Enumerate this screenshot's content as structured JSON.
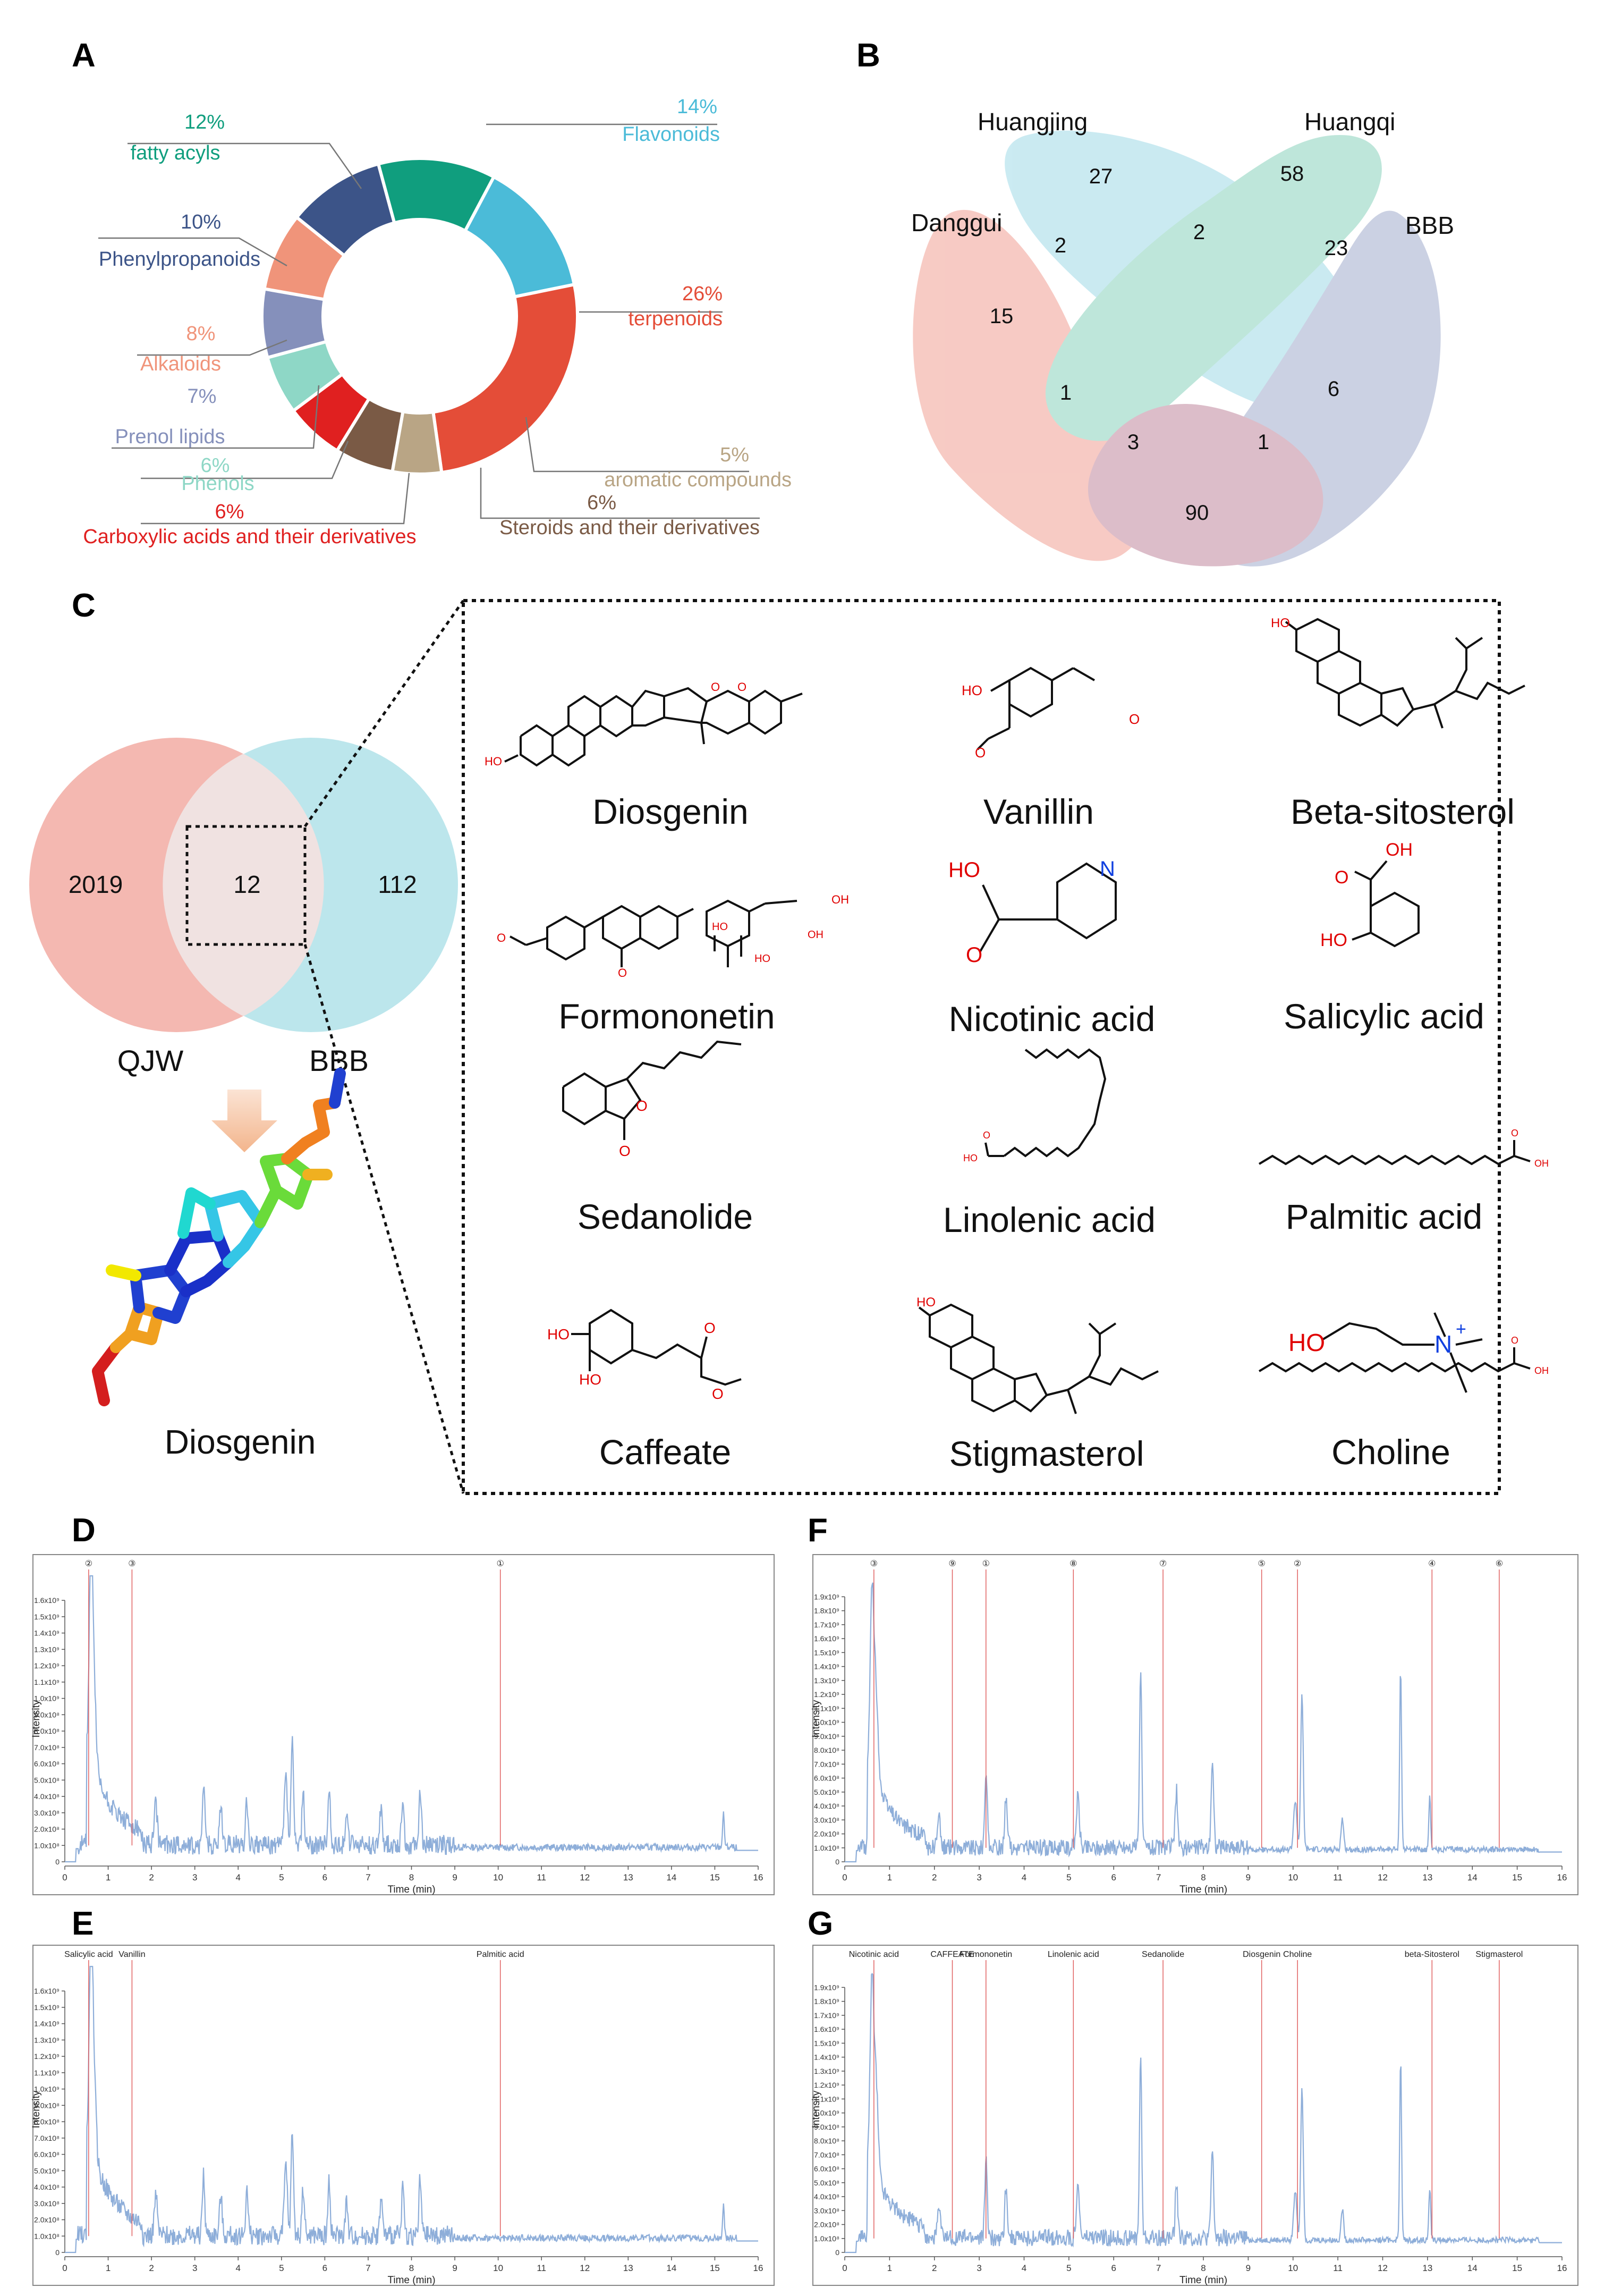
{
  "panels": {
    "A": "A",
    "B": "B",
    "C": "C",
    "D": "D",
    "E": "E",
    "F": "F",
    "G": "G"
  },
  "chart_data": {
    "type": "pie",
    "title": "",
    "categories": [
      "Flavonoids",
      "terpenoids",
      "aromatic compounds",
      "Steroids and their derivatives",
      "Carboxylic acids and their derivatives",
      "Phenols",
      "Prenol lipids",
      "Alkaloids",
      "Phenylpropanoids",
      "fatty acyls"
    ],
    "values": [
      14,
      26,
      5,
      6,
      6,
      6,
      7,
      8,
      10,
      12
    ],
    "percent_labels": [
      "14%",
      "26%",
      "5%",
      "6%",
      "6%",
      "6%",
      "7%",
      "8%",
      "10%",
      "12%"
    ],
    "colors": [
      "#4bbbd8",
      "#e44d38",
      "#b9a585",
      "#7a5a45",
      "#e02020",
      "#8ed7c6",
      "#8590bb",
      "#f0947a",
      "#3c5488",
      "#109e7e"
    ]
  },
  "venn4": {
    "sets": [
      {
        "name": "Huangjing",
        "color": "#a8dde9"
      },
      {
        "name": "Huangqi",
        "color": "#93d7c2"
      },
      {
        "name": "Danggui",
        "color": "#f2a89d"
      },
      {
        "name": "BBB",
        "color": "#a9b3d1"
      }
    ],
    "counts": {
      "huangjing_only": "27",
      "huangqi_only": "58",
      "danggui_only": "15",
      "bbb_only": "90",
      "danggui_huangjing": "2",
      "huangjing_huangqi": "2",
      "huangqi_bbb": "23",
      "danggui_huangqi": "1",
      "huangjing_bbb": "6",
      "danggui_huangjing_huangqi": "3",
      "huangjing_huangqi_bbb": "1"
    }
  },
  "venn2": {
    "left_label": "QJW",
    "right_label": "BBB",
    "left_only": "2019",
    "overlap": "12",
    "right_only": "112",
    "docked_label": "Diosgenin"
  },
  "molecules": [
    "Diosgenin",
    "Vanillin",
    "Beta-sitosterol",
    "Formononetin",
    "Nicotinic acid",
    "Salicylic acid",
    "Sedanolide",
    "Linolenic acid",
    "Palmitic acid",
    "Caffeate",
    "Stigmasterol",
    "Choline"
  ],
  "atoms": {
    "ho": "HO",
    "oh": "OH",
    "o": "O",
    "n": "N",
    "n_plus": "N",
    "plus": "+"
  },
  "chromatograms": {
    "ylabel": "Intensity",
    "xlabel": "Time (min)",
    "x_ticks": [
      "0",
      "1",
      "2",
      "3",
      "4",
      "5",
      "6",
      "7",
      "8",
      "9",
      "10",
      "11",
      "12",
      "13",
      "14",
      "15",
      "16"
    ],
    "D": {
      "y_ticks": [
        "0",
        "1.0x10⁸",
        "2.0x10⁸",
        "3.0x10⁸",
        "4.0x10⁸",
        "5.0x10⁸",
        "6.0x10⁸",
        "7.0x10⁸",
        "8.0x10⁸",
        "9.0x10⁸",
        "1.0x10⁹",
        "1.1x10⁹",
        "1.2x10⁹",
        "1.3x10⁹",
        "1.4x10⁹",
        "1.5x10⁹",
        "1.6x10⁹"
      ],
      "annotations": [
        {
          "text": "②",
          "t": 0.55
        },
        {
          "text": "③",
          "t": 1.55
        },
        {
          "text": "①",
          "t": 10.05
        }
      ]
    },
    "E": {
      "y_ticks": [
        "0",
        "1.0x10⁸",
        "2.0x10⁸",
        "3.0x10⁸",
        "4.0x10⁸",
        "5.0x10⁸",
        "6.0x10⁸",
        "7.0x10⁸",
        "8.0x10⁸",
        "9.0x10⁸",
        "1.0x10⁹",
        "1.1x10⁹",
        "1.2x10⁹",
        "1.3x10⁹",
        "1.4x10⁹",
        "1.5x10⁹",
        "1.6x10⁹"
      ],
      "annotations": [
        {
          "text": "Salicylic acid",
          "t": 0.55
        },
        {
          "text": "Vanillin",
          "t": 1.55
        },
        {
          "text": "Palmitic acid",
          "t": 10.05
        }
      ]
    },
    "F": {
      "y_ticks": [
        "0",
        "1.0x10⁸",
        "2.0x10⁸",
        "3.0x10⁸",
        "4.0x10⁸",
        "5.0x10⁸",
        "6.0x10⁸",
        "7.0x10⁸",
        "8.0x10⁸",
        "9.0x10⁸",
        "1.0x10⁹",
        "1.1x10⁹",
        "1.2x10⁹",
        "1.3x10⁹",
        "1.4x10⁹",
        "1.5x10⁹",
        "1.6x10⁹",
        "1.7x10⁹",
        "1.8x10⁹",
        "1.9x10⁹"
      ],
      "annotations": [
        {
          "text": "③",
          "t": 0.65
        },
        {
          "text": "⑨",
          "t": 2.4
        },
        {
          "text": "①",
          "t": 3.15
        },
        {
          "text": "⑧",
          "t": 5.1
        },
        {
          "text": "⑦",
          "t": 7.1
        },
        {
          "text": "⑤",
          "t": 9.3
        },
        {
          "text": "②",
          "t": 10.1
        },
        {
          "text": "④",
          "t": 13.1
        },
        {
          "text": "⑥",
          "t": 14.6
        }
      ]
    },
    "G": {
      "y_ticks": [
        "0",
        "1.0x10⁸",
        "2.0x10⁸",
        "3.0x10⁸",
        "4.0x10⁸",
        "5.0x10⁸",
        "6.0x10⁸",
        "7.0x10⁸",
        "8.0x10⁸",
        "9.0x10⁸",
        "1.0x10⁹",
        "1.1x10⁹",
        "1.2x10⁹",
        "1.3x10⁹",
        "1.4x10⁹",
        "1.5x10⁹",
        "1.6x10⁹",
        "1.7x10⁹",
        "1.8x10⁹",
        "1.9x10⁹"
      ],
      "annotations": [
        {
          "text": "Nicotinic acid",
          "t": 0.65
        },
        {
          "text": "CAFFEATE",
          "t": 2.4
        },
        {
          "text": "Formononetin",
          "t": 3.15
        },
        {
          "text": "Linolenic acid",
          "t": 5.1
        },
        {
          "text": "Sedanolide",
          "t": 7.1
        },
        {
          "text": "Diosgenin",
          "t": 9.3
        },
        {
          "text": "Choline",
          "t": 10.1
        },
        {
          "text": "beta-Sitosterol",
          "t": 13.1
        },
        {
          "text": "Stigmasterol",
          "t": 14.6
        }
      ]
    }
  },
  "colors": {
    "trace": "#8eaed9",
    "marker": "#e06060",
    "venn_left": "#f2aca3",
    "venn_right": "#a6dde6",
    "border": "#222222",
    "atom_red": "#e00000",
    "atom_blue": "#1040e0"
  }
}
